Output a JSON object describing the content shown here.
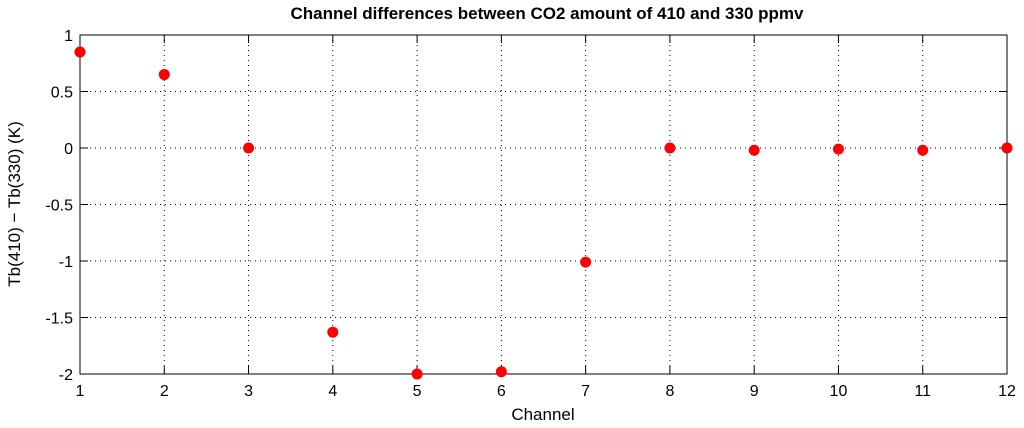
{
  "chart_data": {
    "type": "scatter",
    "title": "Channel differences between CO2 amount of 410 and 330 ppmv",
    "xlabel": "Channel",
    "ylabel": "Tb(410) − Tb(330) (K)",
    "xlim": [
      1,
      12
    ],
    "ylim": [
      -2,
      1
    ],
    "xticks": [
      "1",
      "2",
      "3",
      "4",
      "5",
      "6",
      "7",
      "8",
      "9",
      "10",
      "11",
      "12"
    ],
    "yticks": [
      "1",
      "0.5",
      "0",
      "-0.5",
      "-1",
      "-1.5",
      "-2"
    ],
    "ytick_values": [
      1,
      0.5,
      0,
      -0.5,
      -1,
      -1.5,
      -2
    ],
    "grid": true,
    "marker_color": "#ff0000",
    "x": [
      1,
      2,
      3,
      4,
      5,
      6,
      7,
      8,
      9,
      10,
      11,
      12
    ],
    "y": [
      0.85,
      0.65,
      0.0,
      -1.63,
      -2.0,
      -1.98,
      -1.01,
      0.0,
      -0.02,
      -0.01,
      -0.02,
      0.0
    ]
  }
}
